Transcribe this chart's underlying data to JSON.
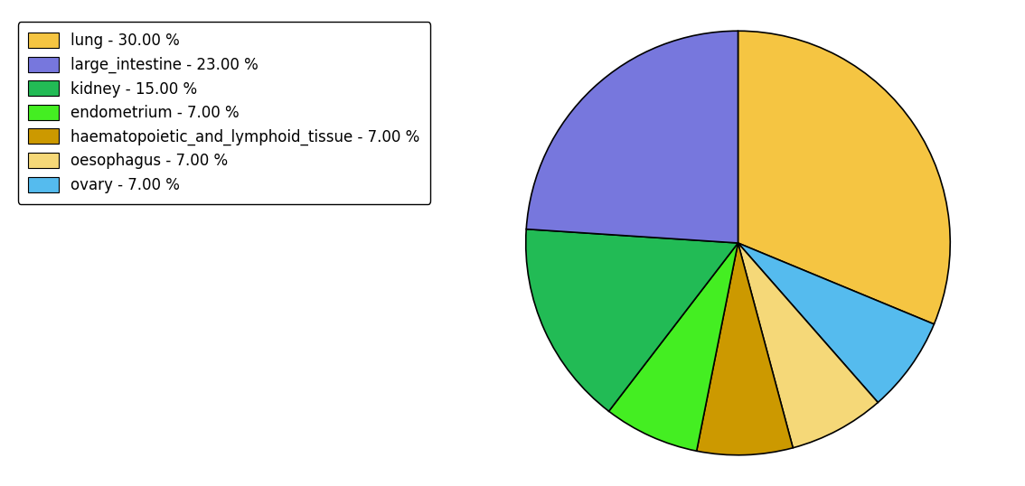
{
  "labels": [
    "lung",
    "large_intestine",
    "kidney",
    "endometrium",
    "haematopoietic_and_lymphoid_tissue",
    "oesophagus",
    "ovary"
  ],
  "values": [
    30,
    23,
    15,
    7,
    7,
    7,
    7
  ],
  "colors": [
    "#F5C542",
    "#7777DD",
    "#22BB55",
    "#44EE22",
    "#CC9900",
    "#F5D878",
    "#55BBEE"
  ],
  "legend_labels": [
    "lung - 30.00 %",
    "large_intestine - 23.00 %",
    "kidney - 15.00 %",
    "endometrium - 7.00 %",
    "haematopoietic_and_lymphoid_tissue - 7.00 %",
    "oesophagus - 7.00 %",
    "ovary - 7.00 %"
  ],
  "figsize": [
    11.34,
    5.38
  ],
  "dpi": 100,
  "startangle": 90,
  "pie_order": [
    "lung",
    "ovary",
    "oesophagus",
    "haematopoietic_and_lymphoid_tissue",
    "endometrium",
    "kidney",
    "large_intestine"
  ]
}
